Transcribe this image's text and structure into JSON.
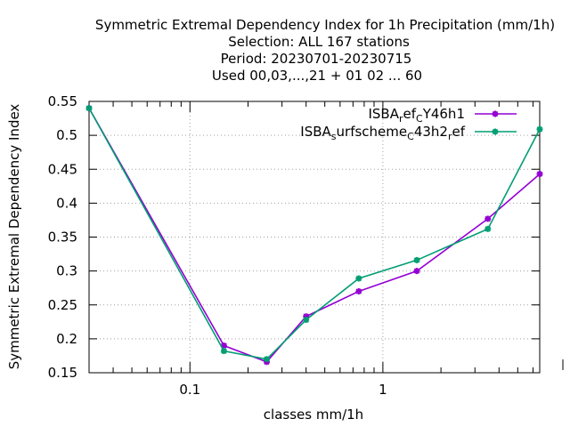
{
  "chart_data": {
    "type": "line",
    "title_lines": [
      "Symmetric Extremal Dependency Index  for 1h Precipitation (mm/1h)",
      "Selection: ALL    167 stations",
      "Period: 20230701-20230715",
      "Used  00,03,...,21  + 01 02 ... 60"
    ],
    "xlabel": "classes mm/1h",
    "ylabel": "Symmetric Extremal Dependency Index",
    "x_scale": "log",
    "xlim": [
      0.03,
      6.5
    ],
    "ylim": [
      0.15,
      0.55
    ],
    "y_ticks": [
      0.15,
      0.2,
      0.25,
      0.3,
      0.35,
      0.4,
      0.45,
      0.5,
      0.55
    ],
    "y_tick_labels": [
      "0.15",
      "0.2",
      "0.25",
      "0.3",
      "0.35",
      "0.4",
      "0.45",
      "0.5",
      "0.55"
    ],
    "x_major_ticks": [
      0.1,
      1
    ],
    "x_major_tick_labels": [
      "0.1",
      "1"
    ],
    "grid": true,
    "legend_position": "top-right",
    "series": [
      {
        "name": "ISBA_ref_CY46h1",
        "legend_parts": [
          [
            "ISBA",
            false
          ],
          [
            "r",
            true
          ],
          [
            "ef",
            false
          ],
          [
            "C",
            true
          ],
          [
            "Y46h1",
            false
          ]
        ],
        "color": "#9400d3",
        "x": [
          0.03,
          0.15,
          0.25,
          0.4,
          0.75,
          1.5,
          3.5,
          6.5
        ],
        "values": [
          0.54,
          0.19,
          0.166,
          0.233,
          0.27,
          0.3,
          0.377,
          0.443
        ]
      },
      {
        "name": "ISBA_surfscheme_C43h2_ref",
        "legend_parts": [
          [
            "ISBA",
            false
          ],
          [
            "s",
            true
          ],
          [
            "urfscheme",
            false
          ],
          [
            "C",
            true
          ],
          [
            "43h2",
            false
          ],
          [
            "r",
            true
          ],
          [
            "ef",
            false
          ]
        ],
        "color": "#009e73",
        "x": [
          0.03,
          0.15,
          0.25,
          0.4,
          0.75,
          1.5,
          3.5,
          6.5
        ],
        "values": [
          0.54,
          0.182,
          0.17,
          0.228,
          0.289,
          0.316,
          0.362,
          0.509
        ]
      }
    ]
  }
}
